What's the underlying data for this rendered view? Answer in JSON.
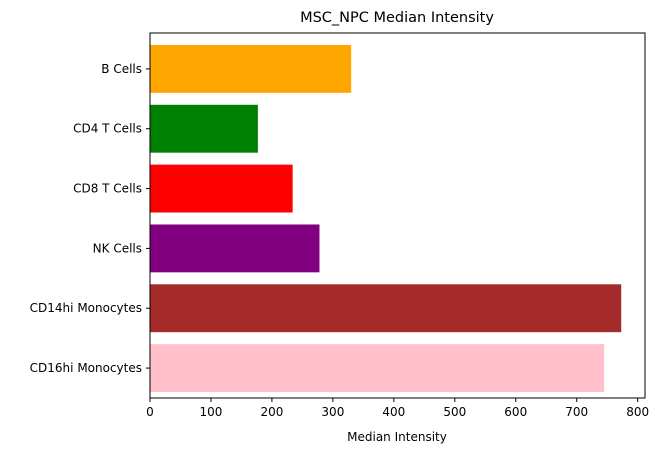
{
  "chart_data": {
    "type": "bar",
    "orientation": "horizontal",
    "title": "MSC_NPC Median Intensity",
    "xlabel": "Median Intensity",
    "ylabel": "",
    "categories": [
      "B Cells",
      "CD4 T Cells",
      "CD8 T Cells",
      "NK Cells",
      "CD14hi Monocytes",
      "CD16hi Monocytes"
    ],
    "values": [
      330,
      177,
      234,
      278,
      773,
      745
    ],
    "colors": [
      "#ffa500",
      "#008000",
      "#ff0000",
      "#800080",
      "#a52a2a",
      "#ffc0cb"
    ],
    "xlim": [
      0,
      812
    ],
    "xticks": [
      0,
      100,
      200,
      300,
      400,
      500,
      600,
      700,
      800
    ],
    "xtick_labels": [
      "0",
      "100",
      "200",
      "300",
      "400",
      "500",
      "600",
      "700",
      "800"
    ],
    "grid": false,
    "legend": false
  }
}
